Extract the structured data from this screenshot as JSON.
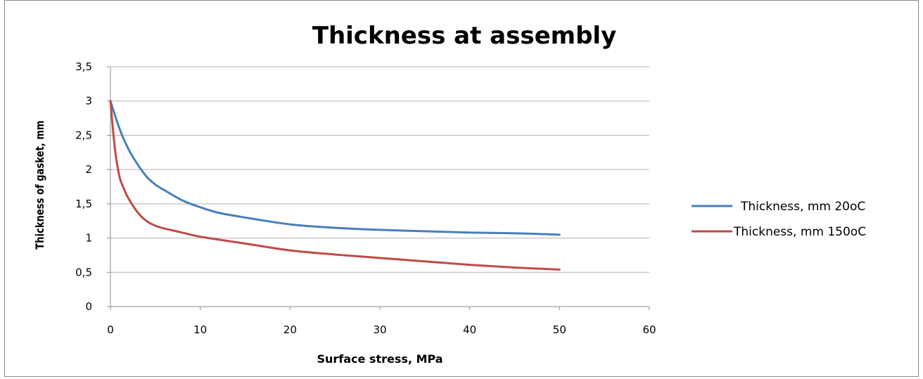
{
  "chart_data": {
    "type": "line",
    "title": "Thickness at assembly",
    "xlabel": "Surface stress, MPa",
    "ylabel": "Thickness of gasket, mm",
    "xlim": [
      0,
      60
    ],
    "ylim": [
      0,
      3.5
    ],
    "x_ticks": [
      "0",
      "10",
      "20",
      "30",
      "40",
      "50",
      "60"
    ],
    "y_ticks": [
      "0",
      "0,5",
      "1",
      "1,5",
      "2",
      "2,5",
      "3",
      "3,5"
    ],
    "grid": "horizontal",
    "legend_position": "right",
    "series": [
      {
        "name": "Thickness, mm 20oC",
        "color": "#4a7ebb",
        "x": [
          0,
          1,
          2,
          3,
          4,
          5,
          6,
          8,
          10,
          12,
          15,
          20,
          25,
          30,
          35,
          40,
          45,
          50
        ],
        "y": [
          3.0,
          2.6,
          2.3,
          2.08,
          1.9,
          1.78,
          1.7,
          1.55,
          1.45,
          1.37,
          1.3,
          1.2,
          1.15,
          1.12,
          1.1,
          1.08,
          1.07,
          1.05
        ]
      },
      {
        "name": "Thickness, mm 150oC",
        "color": "#be4b48",
        "x": [
          0,
          0.5,
          1,
          1.5,
          2,
          3,
          4,
          5,
          6,
          8,
          10,
          15,
          20,
          25,
          30,
          35,
          40,
          45,
          50
        ],
        "y": [
          3.0,
          2.3,
          1.9,
          1.72,
          1.58,
          1.38,
          1.25,
          1.18,
          1.14,
          1.08,
          1.02,
          0.92,
          0.82,
          0.76,
          0.71,
          0.66,
          0.61,
          0.57,
          0.54
        ]
      }
    ]
  }
}
